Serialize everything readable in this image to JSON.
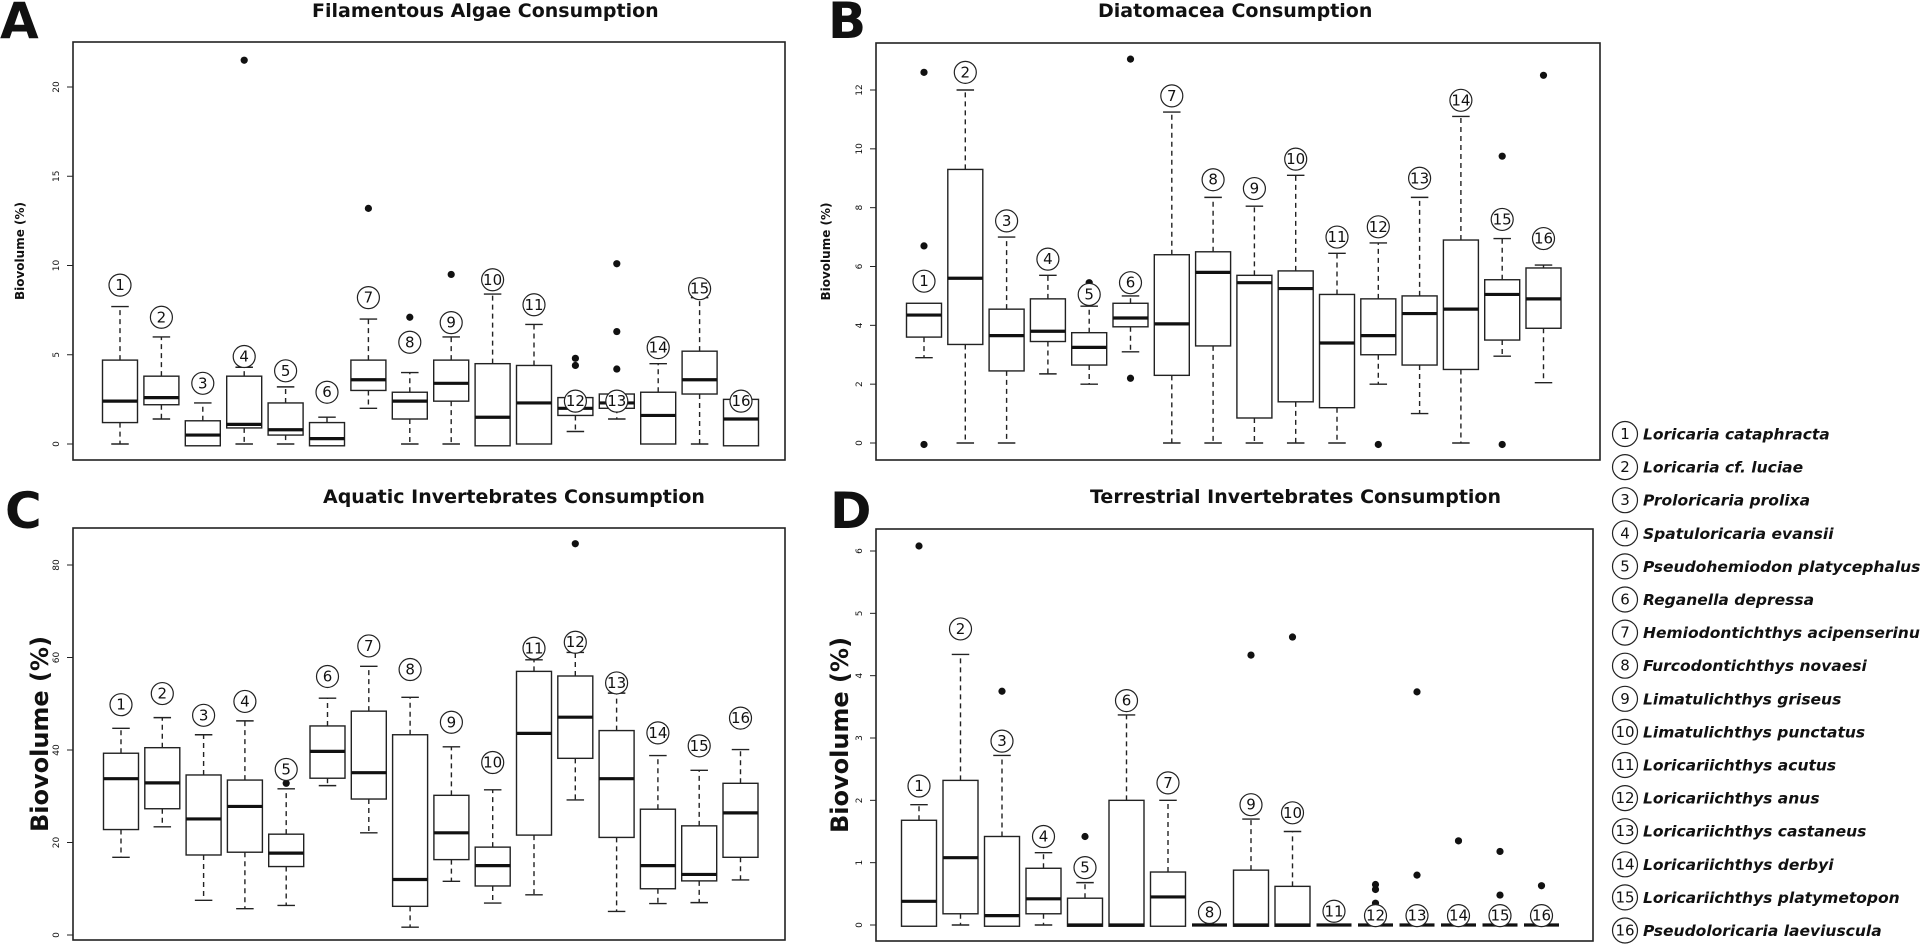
{
  "legend": [
    {
      "n": "1",
      "name": "Loricaria cataphracta"
    },
    {
      "n": "2",
      "name": "Loricaria cf. luciae"
    },
    {
      "n": "3",
      "name": "Proloricaria prolixa"
    },
    {
      "n": "4",
      "name": "Spatuloricaria evansii"
    },
    {
      "n": "5",
      "name": "Pseudohemiodon platycephalus"
    },
    {
      "n": "6",
      "name": "Reganella depressa"
    },
    {
      "n": "7",
      "name": "Hemiodontichthys acipenserinus"
    },
    {
      "n": "8",
      "name": "Furcodontichthys novaesi"
    },
    {
      "n": "9",
      "name": "Limatulichthys griseus"
    },
    {
      "n": "10",
      "name": "Limatulichthys punctatus"
    },
    {
      "n": "11",
      "name": "Loricariichthys acutus"
    },
    {
      "n": "12",
      "name": "Loricariichthys anus"
    },
    {
      "n": "13",
      "name": "Loricariichthys castaneus"
    },
    {
      "n": "14",
      "name": "Loricariichthys derbyi"
    },
    {
      "n": "15",
      "name": "Loricariichthys platymetopon"
    },
    {
      "n": "16",
      "name": "Pseudoloricaria laeviuscula"
    }
  ],
  "chart_data": [
    {
      "type": "boxplot",
      "panel": "A",
      "title": "Filamentous Algae Consumption",
      "xlabel": "",
      "ylabel": "Biovolume (%)",
      "yticks": [
        0,
        5,
        10,
        15,
        20
      ],
      "ylim": [
        -0.6,
        22.8
      ],
      "categories": [
        "1",
        "2",
        "3",
        "4",
        "5",
        "6",
        "7",
        "8",
        "9",
        "10",
        "11",
        "12",
        "13",
        "14",
        "15",
        "16"
      ],
      "boxes": [
        {
          "wlo": 0,
          "q1": 1.2,
          "med": 2.4,
          "q3": 4.7,
          "whi": 7.7,
          "out": []
        },
        {
          "wlo": 1.4,
          "q1": 2.2,
          "med": 2.6,
          "q3": 3.8,
          "whi": 6.0,
          "out": []
        },
        {
          "wlo": -0.1,
          "q1": -0.1,
          "med": 0.5,
          "q3": 1.3,
          "whi": 2.3,
          "out": []
        },
        {
          "wlo": 0,
          "q1": 0.9,
          "med": 1.1,
          "q3": 3.8,
          "whi": 4.3,
          "out": [
            21.5
          ]
        },
        {
          "wlo": 0,
          "q1": 0.5,
          "med": 0.8,
          "q3": 2.3,
          "whi": 3.2,
          "out": []
        },
        {
          "wlo": -0.1,
          "q1": -0.1,
          "med": 0.3,
          "q3": 1.2,
          "whi": 1.5,
          "out": []
        },
        {
          "wlo": 2.0,
          "q1": 3.0,
          "med": 3.6,
          "q3": 4.7,
          "whi": 7.0,
          "out": [
            13.2
          ]
        },
        {
          "wlo": 0,
          "q1": 1.4,
          "med": 2.4,
          "q3": 2.9,
          "whi": 4.0,
          "out": [
            7.1
          ]
        },
        {
          "wlo": 0,
          "q1": 2.4,
          "med": 3.4,
          "q3": 4.7,
          "whi": 6.0,
          "out": [
            9.5
          ]
        },
        {
          "wlo": -0.1,
          "q1": -0.1,
          "med": 1.5,
          "q3": 4.5,
          "whi": 8.4,
          "out": []
        },
        {
          "wlo": 0,
          "q1": 0,
          "med": 2.3,
          "q3": 4.4,
          "whi": 6.7,
          "out": []
        },
        {
          "wlo": 0.7,
          "q1": 1.6,
          "med": 2.0,
          "q3": 2.6,
          "whi": 2.7,
          "out": [
            4.4,
            4.8
          ]
        },
        {
          "wlo": 1.4,
          "q1": 2.0,
          "med": 2.3,
          "q3": 2.8,
          "whi": 2.8,
          "out": [
            4.2,
            6.3,
            10.1
          ]
        },
        {
          "wlo": 0,
          "q1": 0,
          "med": 1.6,
          "q3": 2.9,
          "whi": 4.5,
          "out": []
        },
        {
          "wlo": 0,
          "q1": 2.8,
          "med": 3.6,
          "q3": 5.2,
          "whi": 8.2,
          "out": []
        },
        {
          "wlo": -0.1,
          "q1": -0.1,
          "med": 1.4,
          "q3": 2.5,
          "whi": 2.6,
          "out": []
        }
      ],
      "labelY": [
        8.9,
        7.1,
        3.4,
        4.9,
        4.1,
        2.9,
        8.2,
        5.7,
        6.8,
        9.2,
        7.8,
        2.4,
        2.4,
        5.4,
        8.7,
        2.4
      ]
    },
    {
      "type": "boxplot",
      "panel": "B",
      "title": "Diatomacea Consumption",
      "xlabel": "",
      "ylabel": "Biovolume (%)",
      "yticks": [
        0,
        2,
        4,
        6,
        8,
        10,
        12
      ],
      "ylim": [
        -0.55,
        13.6
      ],
      "categories": [
        "1",
        "2",
        "3",
        "4",
        "5",
        "6",
        "7",
        "8",
        "9",
        "10",
        "11",
        "12",
        "13",
        "14",
        "15",
        "16"
      ],
      "boxes": [
        {
          "wlo": 2.9,
          "q1": 3.6,
          "med": 4.35,
          "q3": 4.75,
          "whi": 4.75,
          "out": [
            -0.05,
            6.7,
            12.6
          ]
        },
        {
          "wlo": 0,
          "q1": 3.35,
          "med": 5.6,
          "q3": 9.3,
          "whi": 12.0,
          "out": []
        },
        {
          "wlo": 0,
          "q1": 2.45,
          "med": 3.65,
          "q3": 4.55,
          "whi": 7.0,
          "out": []
        },
        {
          "wlo": 2.35,
          "q1": 3.45,
          "med": 3.8,
          "q3": 4.9,
          "whi": 5.7,
          "out": []
        },
        {
          "wlo": 2.0,
          "q1": 2.65,
          "med": 3.25,
          "q3": 3.75,
          "whi": 4.65,
          "out": [
            5.45
          ]
        },
        {
          "wlo": 3.1,
          "q1": 3.95,
          "med": 4.25,
          "q3": 4.75,
          "whi": 5.0,
          "out": [
            2.2,
            13.05
          ]
        },
        {
          "wlo": 0,
          "q1": 2.3,
          "med": 4.05,
          "q3": 6.4,
          "whi": 11.25,
          "out": []
        },
        {
          "wlo": 0,
          "q1": 3.3,
          "med": 5.8,
          "q3": 6.5,
          "whi": 8.35,
          "out": []
        },
        {
          "wlo": 0,
          "q1": 0.85,
          "med": 5.45,
          "q3": 5.7,
          "whi": 8.05,
          "out": []
        },
        {
          "wlo": 0,
          "q1": 1.4,
          "med": 5.25,
          "q3": 5.85,
          "whi": 9.1,
          "out": []
        },
        {
          "wlo": 0,
          "q1": 1.2,
          "med": 3.4,
          "q3": 5.05,
          "whi": 6.45,
          "out": []
        },
        {
          "wlo": 2.0,
          "q1": 3.0,
          "med": 3.65,
          "q3": 4.9,
          "whi": 6.8,
          "out": [
            -0.05
          ]
        },
        {
          "wlo": 1.0,
          "q1": 2.65,
          "med": 4.4,
          "q3": 5.0,
          "whi": 8.35,
          "out": []
        },
        {
          "wlo": 0,
          "q1": 2.5,
          "med": 4.55,
          "q3": 6.9,
          "whi": 11.1,
          "out": []
        },
        {
          "wlo": 2.95,
          "q1": 3.5,
          "med": 5.05,
          "q3": 5.55,
          "whi": 6.95,
          "out": [
            -0.05,
            9.75
          ]
        },
        {
          "wlo": 2.05,
          "q1": 3.9,
          "med": 4.9,
          "q3": 5.95,
          "whi": 6.05,
          "out": [
            12.5
          ]
        }
      ],
      "labelY": [
        5.5,
        12.6,
        7.55,
        6.25,
        5.05,
        5.45,
        11.8,
        8.95,
        8.65,
        9.65,
        7.0,
        7.35,
        9.0,
        11.65,
        7.6,
        6.95
      ]
    },
    {
      "type": "boxplot",
      "panel": "C",
      "title": "Aquatic Invertebrates Consumption",
      "xlabel": "",
      "ylabel": "Biovolume (%)",
      "yticks": [
        0,
        20,
        40,
        60,
        80
      ],
      "ylim": [
        -1,
        88
      ],
      "categories": [
        "1",
        "2",
        "3",
        "4",
        "5",
        "6",
        "7",
        "8",
        "9",
        "10",
        "11",
        "12",
        "13",
        "14",
        "15",
        "16"
      ],
      "boxes": [
        {
          "wlo": 16.8,
          "q1": 22.8,
          "med": 33.8,
          "q3": 39.3,
          "whi": 44.7,
          "out": []
        },
        {
          "wlo": 23.4,
          "q1": 27.3,
          "med": 32.9,
          "q3": 40.5,
          "whi": 47.0,
          "out": []
        },
        {
          "wlo": 7.5,
          "q1": 17.3,
          "med": 25.1,
          "q3": 34.6,
          "whi": 43.3,
          "out": []
        },
        {
          "wlo": 5.7,
          "q1": 17.9,
          "med": 27.8,
          "q3": 33.5,
          "whi": 46.3,
          "out": []
        },
        {
          "wlo": 6.4,
          "q1": 14.8,
          "med": 17.7,
          "q3": 21.8,
          "whi": 31.6,
          "out": [
            32.8
          ]
        },
        {
          "wlo": 32.3,
          "q1": 33.9,
          "med": 39.7,
          "q3": 45.2,
          "whi": 51.2,
          "out": []
        },
        {
          "wlo": 22.1,
          "q1": 29.4,
          "med": 35.1,
          "q3": 48.4,
          "whi": 58.1,
          "out": []
        },
        {
          "wlo": 1.7,
          "q1": 6.2,
          "med": 12.0,
          "q3": 43.3,
          "whi": 51.4,
          "out": []
        },
        {
          "wlo": 11.6,
          "q1": 16.3,
          "med": 22.1,
          "q3": 30.2,
          "whi": 40.7,
          "out": []
        },
        {
          "wlo": 6.9,
          "q1": 10.6,
          "med": 15.0,
          "q3": 19.0,
          "whi": 31.4,
          "out": []
        },
        {
          "wlo": 8.7,
          "q1": 21.6,
          "med": 43.6,
          "q3": 57.0,
          "whi": 59.5,
          "out": []
        },
        {
          "wlo": 29.2,
          "q1": 38.2,
          "med": 47.1,
          "q3": 56.0,
          "whi": 61.1,
          "out": [
            84.6
          ]
        },
        {
          "wlo": 5.1,
          "q1": 21.1,
          "med": 33.8,
          "q3": 44.2,
          "whi": 52.3,
          "out": []
        },
        {
          "wlo": 6.8,
          "q1": 10.0,
          "med": 15.0,
          "q3": 27.2,
          "whi": 38.8,
          "out": []
        },
        {
          "wlo": 7.0,
          "q1": 11.7,
          "med": 13.1,
          "q3": 23.6,
          "whi": 35.6,
          "out": []
        },
        {
          "wlo": 11.9,
          "q1": 16.8,
          "med": 26.4,
          "q3": 32.8,
          "whi": 40.1,
          "out": []
        }
      ],
      "labelY": [
        49.8,
        52.2,
        47.5,
        50.5,
        35.8,
        55.9,
        62.5,
        57.4,
        46.0,
        37.3,
        62.0,
        63.3,
        54.5,
        43.7,
        40.9,
        46.9
      ]
    },
    {
      "type": "boxplot",
      "panel": "D",
      "title": "Terrestrial Invertebrates Consumption",
      "xlabel": "",
      "ylabel": "Biovolume (%)",
      "yticks": [
        0,
        1,
        2,
        3,
        4,
        5,
        6
      ],
      "ylim": [
        -0.25,
        6.35
      ],
      "categories": [
        "1",
        "2",
        "3",
        "4",
        "5",
        "6",
        "7",
        "8",
        "9",
        "10",
        "11",
        "12",
        "13",
        "14",
        "15",
        "16"
      ],
      "boxes": [
        {
          "wlo": -0.02,
          "q1": -0.02,
          "med": 0.38,
          "q3": 1.68,
          "whi": 1.93,
          "out": [
            6.08
          ]
        },
        {
          "wlo": 0,
          "q1": 0.18,
          "med": 1.08,
          "q3": 2.32,
          "whi": 4.34,
          "out": []
        },
        {
          "wlo": -0.02,
          "q1": -0.02,
          "med": 0.15,
          "q3": 1.42,
          "whi": 2.72,
          "out": [
            3.75
          ]
        },
        {
          "wlo": 0,
          "q1": 0.18,
          "med": 0.42,
          "q3": 0.91,
          "whi": 1.16,
          "out": []
        },
        {
          "wlo": -0.02,
          "q1": -0.02,
          "med": 0,
          "q3": 0.43,
          "whi": 0.68,
          "out": [
            1.42
          ]
        },
        {
          "wlo": -0.02,
          "q1": -0.02,
          "med": 0,
          "q3": 2.0,
          "whi": 3.37,
          "out": []
        },
        {
          "wlo": -0.02,
          "q1": -0.02,
          "med": 0.45,
          "q3": 0.85,
          "whi": 2.0,
          "out": []
        },
        {
          "wlo": 0,
          "q1": 0,
          "med": 0,
          "q3": 0,
          "whi": 0,
          "out": []
        },
        {
          "wlo": -0.02,
          "q1": -0.02,
          "med": 0,
          "q3": 0.88,
          "whi": 1.7,
          "out": [
            4.33
          ]
        },
        {
          "wlo": -0.02,
          "q1": -0.02,
          "med": 0,
          "q3": 0.62,
          "whi": 1.5,
          "out": [
            4.62
          ]
        },
        {
          "wlo": 0,
          "q1": 0,
          "med": 0,
          "q3": 0,
          "whi": 0,
          "out": []
        },
        {
          "wlo": 0,
          "q1": 0,
          "med": 0,
          "q3": 0,
          "whi": 0,
          "out": [
            0.35,
            0.57,
            0.65
          ]
        },
        {
          "wlo": 0,
          "q1": 0,
          "med": 0,
          "q3": 0,
          "whi": 0,
          "out": [
            0.8,
            3.74
          ]
        },
        {
          "wlo": 0,
          "q1": 0,
          "med": 0,
          "q3": 0,
          "whi": 0,
          "out": [
            1.35
          ]
        },
        {
          "wlo": 0,
          "q1": 0,
          "med": 0,
          "q3": 0,
          "whi": 0,
          "out": [
            0.48,
            1.18
          ]
        },
        {
          "wlo": 0,
          "q1": 0,
          "med": 0,
          "q3": 0,
          "whi": 0,
          "out": [
            0.63
          ]
        }
      ],
      "labelY": [
        2.23,
        4.75,
        2.95,
        1.42,
        0.92,
        3.6,
        2.28,
        0.2,
        1.93,
        1.8,
        0.22,
        0.15,
        0.15,
        0.15,
        0.15,
        0.15
      ]
    }
  ]
}
